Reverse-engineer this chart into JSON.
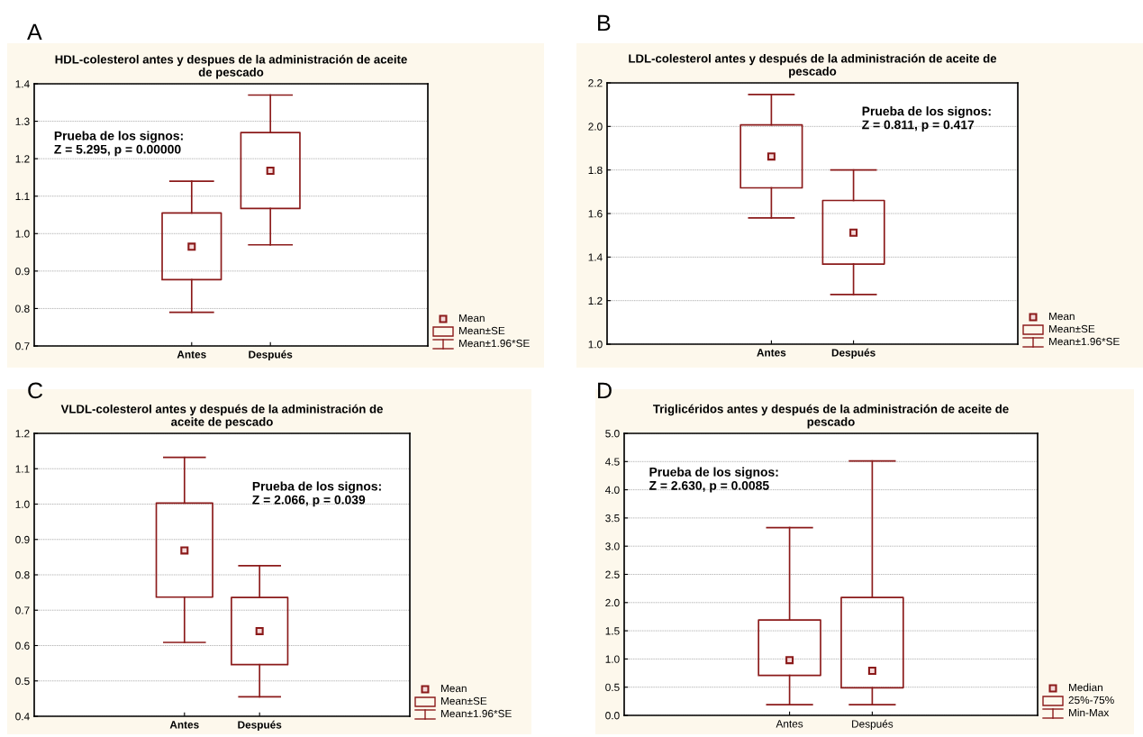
{
  "chart_data": [
    {
      "type": "box",
      "title": "HDL-colesterol antes y despues de la administración de aceite\nde pescado",
      "categories": [
        "Antes",
        "Después"
      ],
      "ylim": [
        0.7,
        1.4
      ],
      "yticks": [
        {
          "value": 0.7,
          "label": "0.7"
        },
        {
          "value": 0.8,
          "label": "0.8"
        },
        {
          "value": 0.9,
          "label": "0.9"
        },
        {
          "value": 1.0,
          "label": "1.0"
        },
        {
          "value": 1.1,
          "label": "1.1"
        },
        {
          "value": 1.2,
          "label": "1.2"
        },
        {
          "value": 1.3,
          "label": "1.3"
        },
        {
          "value": 1.4,
          "label": "1.4"
        }
      ],
      "grid": "y",
      "marker": "square",
      "color": "#8b1a1a",
      "annotations": [
        "A",
        "Prueba de los signos:\nZ = 5.295, p = 0.00000",
        "Mean",
        "Mean±SE",
        "Mean±1.96*SE"
      ],
      "boxes": [
        {
          "low": 0.79,
          "q1": 0.877,
          "median": 0.965,
          "q3": 1.055,
          "high": 1.14
        },
        {
          "low": 0.97,
          "q1": 1.067,
          "median": 1.168,
          "q3": 1.27,
          "high": 1.37
        }
      ]
    },
    {
      "type": "box",
      "title": "LDL-colesterol antes y después de la administración de aceite de\npescado",
      "categories": [
        "Antes",
        "Después"
      ],
      "ylim": [
        1.0,
        2.2
      ],
      "yticks": [
        {
          "value": 1.0,
          "label": "1.0"
        },
        {
          "value": 1.2,
          "label": "1.2"
        },
        {
          "value": 1.4,
          "label": "1.4"
        },
        {
          "value": 1.6,
          "label": "1.6"
        },
        {
          "value": 1.8,
          "label": "1.8"
        },
        {
          "value": 2.0,
          "label": "2.0"
        },
        {
          "value": 2.2,
          "label": "2.2"
        }
      ],
      "grid": "y",
      "marker": "square",
      "color": "#8b1a1a",
      "annotations": [
        "B",
        "Prueba de los signos:\nZ = 0.811, p = 0.417",
        "Mean",
        "Mean±SE",
        "Mean±1.96*SE"
      ],
      "boxes": [
        {
          "low": 1.58,
          "q1": 1.718,
          "median": 1.862,
          "q3": 2.007,
          "high": 2.147
        },
        {
          "low": 1.228,
          "q1": 1.368,
          "median": 1.512,
          "q3": 1.66,
          "high": 1.8
        }
      ]
    },
    {
      "type": "box",
      "title": "VLDL-colesterol antes y después de la administración de\naceite de pescado",
      "categories": [
        "Antes",
        "Después"
      ],
      "ylim": [
        0.4,
        1.2
      ],
      "yticks": [
        {
          "value": 0.4,
          "label": "0.4"
        },
        {
          "value": 0.5,
          "label": "0.5"
        },
        {
          "value": 0.6,
          "label": "0.6"
        },
        {
          "value": 0.7,
          "label": "0.7"
        },
        {
          "value": 0.8,
          "label": "0.8"
        },
        {
          "value": 0.9,
          "label": "0.9"
        },
        {
          "value": 1.0,
          "label": "1.0"
        },
        {
          "value": 1.1,
          "label": "1.1"
        },
        {
          "value": 1.2,
          "label": "1.2"
        }
      ],
      "grid": "y",
      "marker": "square",
      "color": "#8b1a1a",
      "annotations": [
        "C",
        "Prueba de los signos:\nZ = 2.066, p = 0.039",
        "Mean",
        "Mean±SE",
        "Mean±1.96*SE"
      ],
      "boxes": [
        {
          "low": 0.609,
          "q1": 0.737,
          "median": 0.869,
          "q3": 1.003,
          "high": 1.132
        },
        {
          "low": 0.455,
          "q1": 0.546,
          "median": 0.641,
          "q3": 0.736,
          "high": 0.826
        }
      ]
    },
    {
      "type": "box",
      "title": "Triglicéridos antes y después de la administración de aceite de\npescado",
      "categories": [
        "Antes",
        "Después"
      ],
      "ylim": [
        0.0,
        5.0
      ],
      "yticks": [
        {
          "value": 0.0,
          "label": "0.0"
        },
        {
          "value": 0.5,
          "label": "0.5"
        },
        {
          "value": 1.0,
          "label": "1.0"
        },
        {
          "value": 1.5,
          "label": "1.5"
        },
        {
          "value": 2.0,
          "label": "2.0"
        },
        {
          "value": 2.5,
          "label": "2.5"
        },
        {
          "value": 3.0,
          "label": "3.0"
        },
        {
          "value": 3.5,
          "label": "3.5"
        },
        {
          "value": 4.0,
          "label": "4.0"
        },
        {
          "value": 4.5,
          "label": "4.5"
        },
        {
          "value": 5.0,
          "label": "5.0"
        }
      ],
      "grid": "y",
      "marker": "square",
      "color": "#8b1a1a",
      "annotations": [
        "D",
        "Prueba de los signos:\nZ = 2.630, p = 0.0085",
        "Median",
        "25%-75%",
        "Min-Max"
      ],
      "boxes": [
        {
          "low": 0.19,
          "q1": 0.71,
          "median": 0.98,
          "q3": 1.69,
          "high": 3.33
        },
        {
          "low": 0.19,
          "q1": 0.49,
          "median": 0.79,
          "q3": 2.09,
          "high": 4.51
        }
      ]
    }
  ]
}
